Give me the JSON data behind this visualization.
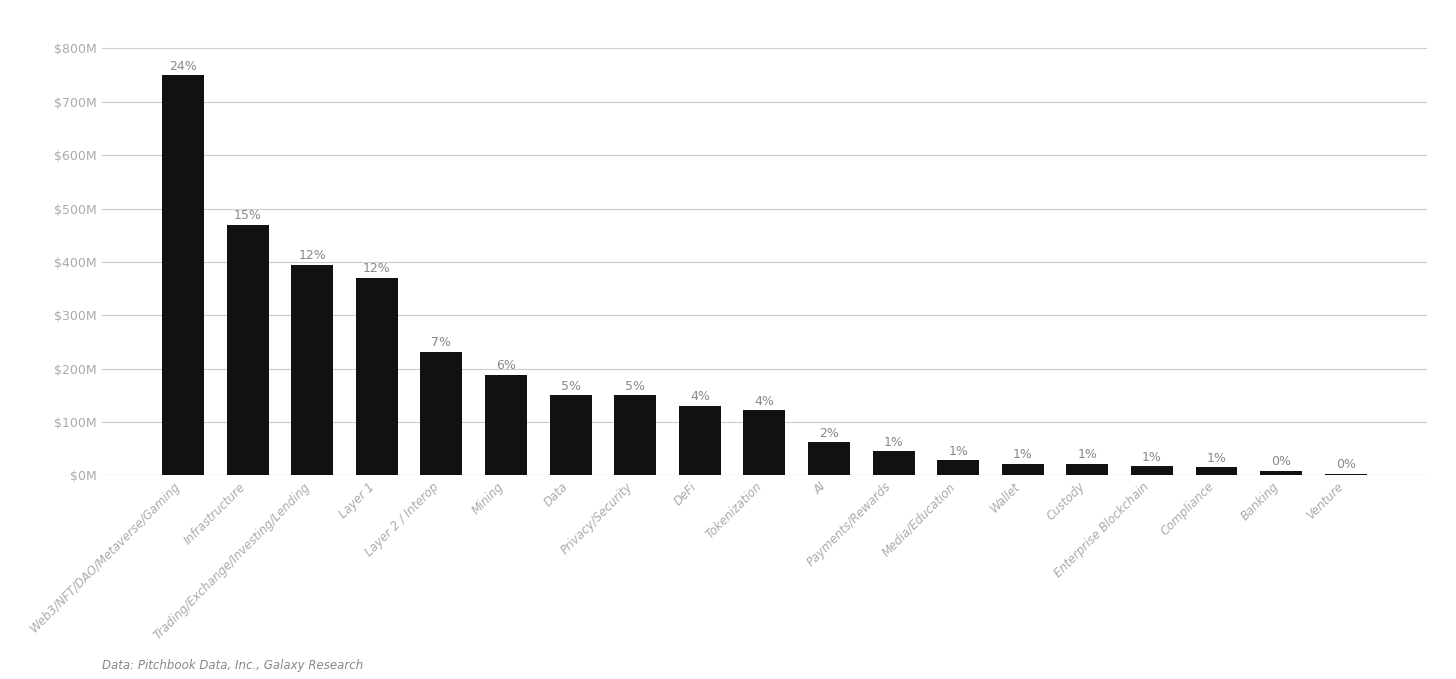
{
  "categories": [
    "Web3/NFT/DAO/Metaverse/Gaming",
    "Infrastructure",
    "Trading/Exchange/Investing/Lending",
    "Layer 1",
    "Layer 2 / Interop",
    "Mining",
    "Data",
    "Privacy/Security",
    "DeFi",
    "Tokenization",
    "AI",
    "Payments/Rewards",
    "Media/Education",
    "Wallet",
    "Custody",
    "Enterprise Blockchain",
    "Compliance",
    "Banking",
    "Venture"
  ],
  "values": [
    750,
    470,
    395,
    370,
    232,
    188,
    150,
    150,
    130,
    122,
    62,
    45,
    28,
    22,
    22,
    17,
    15,
    8,
    3
  ],
  "percentages": [
    "24%",
    "15%",
    "12%",
    "12%",
    "7%",
    "6%",
    "5%",
    "5%",
    "4%",
    "4%",
    "2%",
    "1%",
    "1%",
    "1%",
    "1%",
    "1%",
    "1%",
    "0%",
    "0%"
  ],
  "bar_color": "#111111",
  "background_color": "#ffffff",
  "ylabel_ticks": [
    "$0M",
    "$100M",
    "$200M",
    "$300M",
    "$400M",
    "$500M",
    "$600M",
    "$700M",
    "$800M"
  ],
  "ytick_values": [
    0,
    100,
    200,
    300,
    400,
    500,
    600,
    700,
    800
  ],
  "ylim": [
    0,
    840
  ],
  "grid_color": "#cccccc",
  "tick_label_color": "#aaaaaa",
  "annotation_color": "#888888",
  "source_text": "Data: Pitchbook Data, Inc., Galaxy Research",
  "annotation_fontsize": 9,
  "source_fontsize": 8.5,
  "xlabel_fontsize": 8.5,
  "ytick_fontsize": 9
}
